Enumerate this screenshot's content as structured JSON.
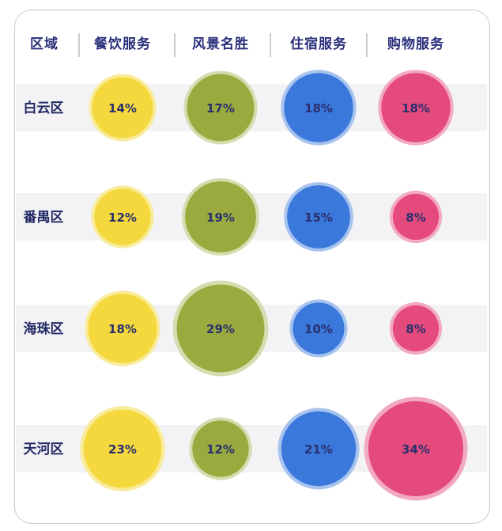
{
  "chart_data": {
    "type": "bubble-table",
    "corner_label": "区域",
    "categories": [
      "餐饮服务",
      "风景名胜",
      "住宿服务",
      "购物服务"
    ],
    "rows": [
      {
        "label": "白云区",
        "values": [
          14,
          17,
          18,
          18
        ]
      },
      {
        "label": "番禺区",
        "values": [
          12,
          19,
          15,
          8
        ]
      },
      {
        "label": "海珠区",
        "values": [
          18,
          29,
          10,
          8
        ]
      },
      {
        "label": "天河区",
        "values": [
          23,
          12,
          21,
          34
        ]
      }
    ],
    "unit": "%",
    "colors": {
      "餐饮服务": "#f4d83d",
      "风景名胜": "#9aaa3e",
      "住宿服务": "#3a78dc",
      "购物服务": "#e44a7c"
    },
    "halo_colors": {
      "餐饮服务": "#f8ec9c",
      "风景名胜": "#d6dcb0",
      "住宿服务": "#a7c3ee",
      "购物服务": "#f2aac2"
    }
  }
}
